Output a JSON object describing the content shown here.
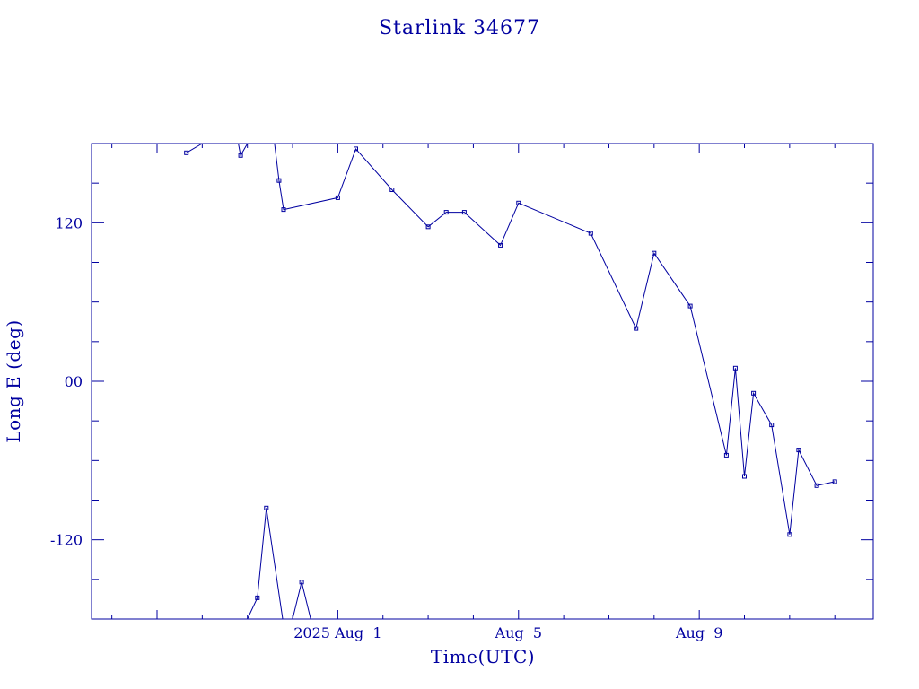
{
  "colors": {
    "line": "#0000a0",
    "background": "#ffffff"
  },
  "chart_data": {
    "type": "line",
    "title": "Starlink 34677",
    "xlabel": "Time(UTC)",
    "ylabel": "Long E (deg)",
    "x_unit": "days",
    "xlim": [
      -4.45,
      12.85
    ],
    "ylim": [
      -180,
      180
    ],
    "grid": false,
    "legend": "none",
    "x_ticks": [
      {
        "value": 1,
        "label": "2025 Aug  1"
      },
      {
        "value": 5,
        "label": "Aug  5"
      },
      {
        "value": 9,
        "label": "Aug  9"
      }
    ],
    "y_ticks": [
      {
        "value": 120,
        "label": "120"
      },
      {
        "value": 0,
        "label": "00"
      },
      {
        "value": -120,
        "label": "-120"
      }
    ],
    "series": [
      {
        "wraps": true,
        "points": [
          [
            -2.35,
            173
          ],
          [
            -2.0,
            180
          ],
          [
            -1.2,
            180
          ],
          [
            -1.15,
            171
          ],
          [
            -1.0,
            180
          ],
          [
            -0.4,
            180
          ],
          [
            -0.3,
            152
          ],
          [
            -0.2,
            130
          ],
          [
            1.0,
            139
          ],
          [
            1.4,
            176
          ],
          [
            2.2,
            145
          ],
          [
            3.0,
            117
          ],
          [
            3.4,
            128
          ],
          [
            3.8,
            128
          ],
          [
            4.6,
            103
          ],
          [
            5.0,
            135
          ],
          [
            6.6,
            112
          ],
          [
            7.6,
            40
          ],
          [
            8.0,
            97
          ],
          [
            8.8,
            57
          ],
          [
            9.6,
            -56
          ],
          [
            9.8,
            10
          ],
          [
            10.0,
            -72
          ],
          [
            10.2,
            -9
          ],
          [
            10.6,
            -33
          ],
          [
            11.0,
            -116
          ],
          [
            11.2,
            -52
          ],
          [
            11.6,
            -79
          ],
          [
            12.0,
            -76
          ]
        ],
        "points_lower": [
          [
            -1.0,
            -180
          ],
          [
            -0.78,
            -164
          ],
          [
            -0.58,
            -96
          ],
          [
            -0.22,
            -180
          ],
          [
            0.0,
            -180
          ],
          [
            0.2,
            -152
          ],
          [
            0.4,
            -180
          ]
        ]
      }
    ]
  }
}
